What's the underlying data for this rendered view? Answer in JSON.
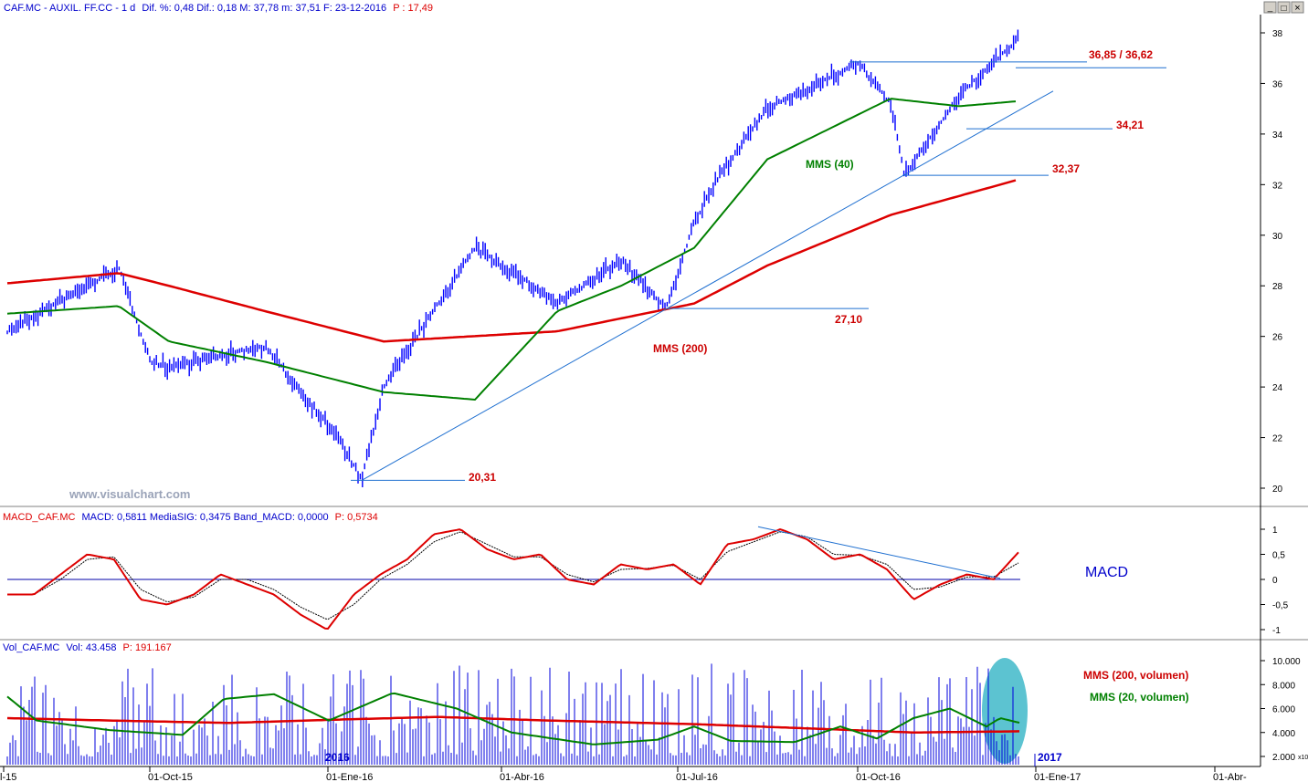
{
  "window": {
    "title": "CAF.MC - AUXIL. FF.CC - 1 d",
    "stats": "Dif. %: 0,48  Dif.: 0,18  M: 37,78  m: 37,51  F: 23-12-2016",
    "p_text": "P : 17,49",
    "minimize": "_",
    "restore": "□",
    "close": "×"
  },
  "colors": {
    "price": "#0000ff",
    "mms40": "#008000",
    "mms200": "#dd0000",
    "annot_red": "#cc0000",
    "trend": "#1e6fd0",
    "hl": "#3fb8c9"
  },
  "watermark": "www.visualchart.com",
  "x_axis": {
    "labels": [
      "l-15",
      "01-Oct-15",
      "01-Ene-16",
      "01-Abr-16",
      "01-Jul-16",
      "01-Oct-16",
      "01-Ene-17",
      "01-Abr-"
    ],
    "year_labels": [
      "2016",
      "2017"
    ],
    "small_label": "x10"
  },
  "chart_data": [
    {
      "type": "line",
      "title": "CAF.MC - AUXIL. FF.CC - 1 d",
      "y_ticks": [
        "20",
        "22",
        "24",
        "26",
        "28",
        "30",
        "32",
        "34",
        "36",
        "38"
      ],
      "ylim": [
        19.5,
        38.7
      ],
      "price_series": {
        "name": "CAF.MC",
        "approx_path": [
          [
            "l-15",
            26.2
          ],
          [
            "Aug-15",
            28.7
          ],
          [
            "Sep-15",
            25.0
          ],
          [
            "01-Oct-15",
            24.8
          ],
          [
            "Nov-15",
            25.6
          ],
          [
            "Dec-15",
            22.0
          ],
          [
            "mid-Dec-15",
            20.31
          ],
          [
            "01-Ene-16",
            24.0
          ],
          [
            "Feb-16",
            29.5
          ],
          [
            "Mar-16",
            28.2
          ],
          [
            "01-Abr-16",
            27.3
          ],
          [
            "May-16",
            29.0
          ],
          [
            "Jun-16",
            27.1
          ],
          [
            "01-Jul-16",
            30.5
          ],
          [
            "Jul-16",
            32.5
          ],
          [
            "Aug-16",
            35.0
          ],
          [
            "Sep-16",
            36.8
          ],
          [
            "01-Oct-16",
            35.2
          ],
          [
            "Oct-16",
            32.37
          ],
          [
            "Nov-16",
            35.5
          ],
          [
            "23-12-2016",
            37.78
          ]
        ]
      },
      "series": [
        {
          "name": "MMS (40)",
          "approx_path": [
            [
              "l-15",
              26.9
            ],
            [
              "Aug-15",
              27.2
            ],
            [
              "01-Oct-15",
              25.8
            ],
            [
              "Nov-15",
              25.0
            ],
            [
              "01-Ene-16",
              23.8
            ],
            [
              "Feb-16",
              23.5
            ],
            [
              "01-Abr-16",
              27.0
            ],
            [
              "May-16",
              28.0
            ],
            [
              "01-Jul-16",
              29.5
            ],
            [
              "Aug-16",
              33.0
            ],
            [
              "01-Oct-16",
              35.4
            ],
            [
              "Nov-16",
              35.1
            ],
            [
              "23-12-2016",
              35.3
            ]
          ]
        },
        {
          "name": "MMS (200)",
          "approx_path": [
            [
              "l-15",
              28.1
            ],
            [
              "Aug-15",
              28.5
            ],
            [
              "01-Oct-15",
              28.0
            ],
            [
              "Nov-15",
              27.0
            ],
            [
              "01-Ene-16",
              25.8
            ],
            [
              "01-Abr-16",
              26.2
            ],
            [
              "01-Jul-16",
              27.3
            ],
            [
              "Aug-16",
              28.8
            ],
            [
              "01-Oct-16",
              30.8
            ],
            [
              "23-12-2016",
              32.2
            ]
          ]
        }
      ],
      "annotations": [
        "36,85 / 36,62",
        "34,21",
        "32,37",
        "27,10",
        "20,31",
        "MMS (40)",
        "MMS (200)"
      ]
    },
    {
      "type": "line",
      "title": "MACD_CAF.MC",
      "header_values": "MACD: 0,5811  MediaSIG: 0,3475  Band_MACD: 0,0000",
      "p_text": "P: 0,5734",
      "label": "MACD",
      "y_ticks": [
        "1",
        "0,5",
        "0",
        "-0,5",
        "-1"
      ],
      "ylim": [
        -1.15,
        1.15
      ],
      "series": [
        {
          "name": "MACD",
          "values": [
            -0.3,
            -0.3,
            0.1,
            0.5,
            0.4,
            -0.4,
            -0.5,
            -0.3,
            0.1,
            -0.1,
            -0.3,
            -0.7,
            -1.0,
            -0.3,
            0.1,
            0.4,
            0.9,
            1.0,
            0.6,
            0.4,
            0.5,
            0.0,
            -0.1,
            0.3,
            0.2,
            0.3,
            -0.1,
            0.7,
            0.8,
            1.0,
            0.8,
            0.4,
            0.5,
            0.2,
            -0.4,
            -0.1,
            0.1,
            0.0,
            0.58
          ]
        },
        {
          "name": "MediaSIG",
          "values": [
            -0.3,
            -0.3,
            0.0,
            0.4,
            0.45,
            -0.2,
            -0.45,
            -0.35,
            0.0,
            0.0,
            -0.2,
            -0.55,
            -0.8,
            -0.5,
            0.0,
            0.3,
            0.75,
            0.95,
            0.7,
            0.45,
            0.45,
            0.1,
            -0.05,
            0.2,
            0.22,
            0.28,
            0.0,
            0.55,
            0.75,
            0.95,
            0.85,
            0.5,
            0.48,
            0.3,
            -0.2,
            -0.15,
            0.05,
            0.05,
            0.35
          ]
        }
      ]
    },
    {
      "type": "bar",
      "title": "Vol_CAF.MC",
      "header_values": "Vol: 43.458",
      "p_text": "P: 191.167",
      "y_ticks": [
        "10.000",
        "8.000",
        "6.000",
        "4.000",
        "2.000"
      ],
      "ylim": [
        1500,
        10400
      ],
      "series": [
        {
          "name": "MMS (200, volumen)",
          "approx_level": 5000
        },
        {
          "name": "MMS (20, volumen)",
          "approx_range": [
            2800,
            7500
          ]
        }
      ]
    }
  ]
}
